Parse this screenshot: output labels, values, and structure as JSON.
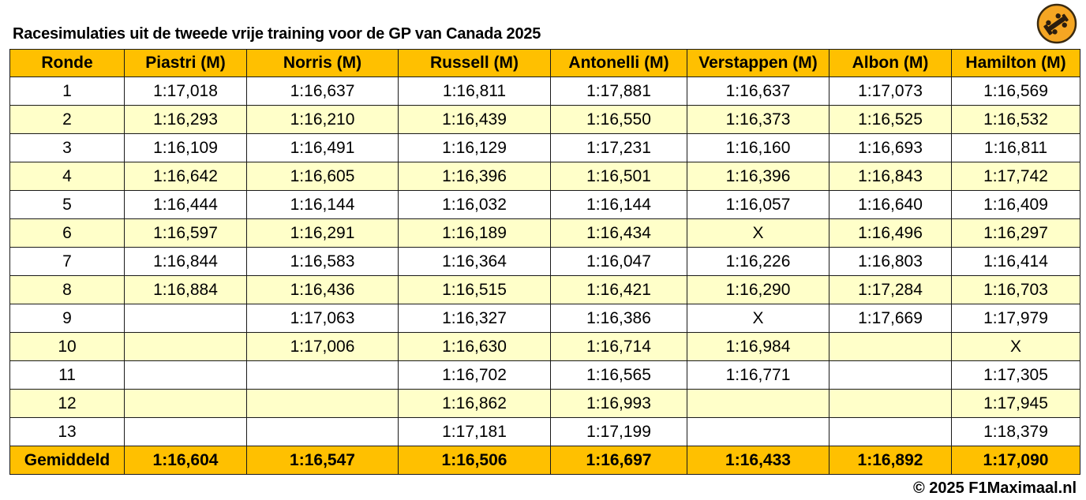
{
  "title": "Racesimulaties uit de tweede vrije training voor de GP van Canada 2025",
  "copyright": "© 2025 F1Maximaal.nl",
  "logo_icon": "f1-car-circle-logo",
  "colors": {
    "header": "#ffc000",
    "alt_row": "#ffffc9",
    "white_row": "#ffffff"
  },
  "columns": [
    "Ronde",
    "Piastri (M)",
    "Norris (M)",
    "Russell (M)",
    "Antonelli (M)",
    "Verstappen (M)",
    "Albon (M)",
    "Hamilton (M)"
  ],
  "rows": [
    [
      "1",
      "1:17,018",
      "1:16,637",
      "1:16,811",
      "1:17,881",
      "1:16,637",
      "1:17,073",
      "1:16,569"
    ],
    [
      "2",
      "1:16,293",
      "1:16,210",
      "1:16,439",
      "1:16,550",
      "1:16,373",
      "1:16,525",
      "1:16,532"
    ],
    [
      "3",
      "1:16,109",
      "1:16,491",
      "1:16,129",
      "1:17,231",
      "1:16,160",
      "1:16,693",
      "1:16,811"
    ],
    [
      "4",
      "1:16,642",
      "1:16,605",
      "1:16,396",
      "1:16,501",
      "1:16,396",
      "1:16,843",
      "1:17,742"
    ],
    [
      "5",
      "1:16,444",
      "1:16,144",
      "1:16,032",
      "1:16,144",
      "1:16,057",
      "1:16,640",
      "1:16,409"
    ],
    [
      "6",
      "1:16,597",
      "1:16,291",
      "1:16,189",
      "1:16,434",
      "X",
      "1:16,496",
      "1:16,297"
    ],
    [
      "7",
      "1:16,844",
      "1:16,583",
      "1:16,364",
      "1:16,047",
      "1:16,226",
      "1:16,803",
      "1:16,414"
    ],
    [
      "8",
      "1:16,884",
      "1:16,436",
      "1:16,515",
      "1:16,421",
      "1:16,290",
      "1:17,284",
      "1:16,703"
    ],
    [
      "9",
      "",
      "1:17,063",
      "1:16,327",
      "1:16,386",
      "X",
      "1:17,669",
      "1:17,979"
    ],
    [
      "10",
      "",
      "1:17,006",
      "1:16,630",
      "1:16,714",
      "1:16,984",
      "",
      "X"
    ],
    [
      "11",
      "",
      "",
      "1:16,702",
      "1:16,565",
      "1:16,771",
      "",
      "1:17,305"
    ],
    [
      "12",
      "",
      "",
      "1:16,862",
      "1:16,993",
      "",
      "",
      "1:17,945"
    ],
    [
      "13",
      "",
      "",
      "1:17,181",
      "1:17,199",
      "",
      "",
      "1:18,379"
    ]
  ],
  "average": [
    "Gemiddeld",
    "1:16,604",
    "1:16,547",
    "1:16,506",
    "1:16,697",
    "1:16,433",
    "1:16,892",
    "1:17,090"
  ]
}
